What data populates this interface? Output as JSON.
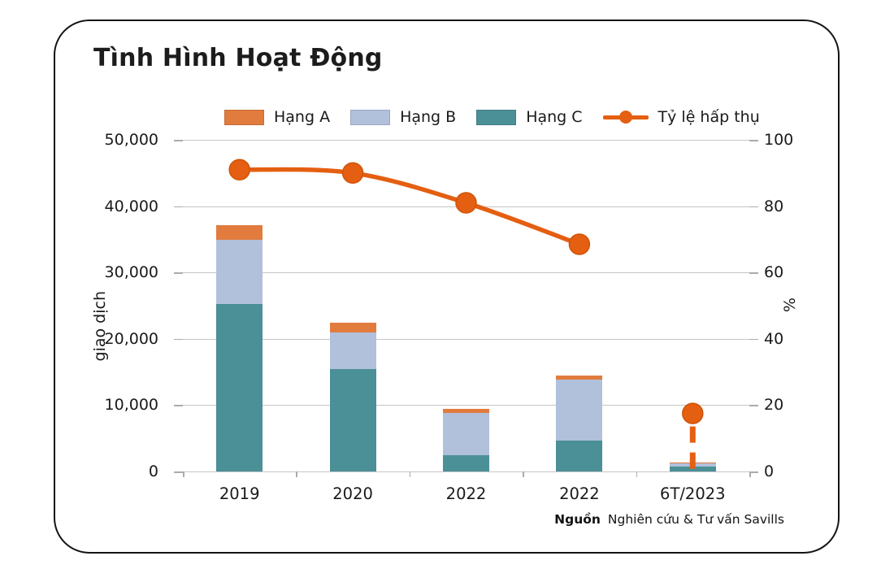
{
  "legend": [
    {
      "label": "Hạng A",
      "type": "swatch",
      "color": "#e17c3e"
    },
    {
      "label": "Hạng B",
      "type": "swatch",
      "color": "#b1c0db"
    },
    {
      "label": "Hạng C",
      "type": "swatch",
      "color": "#4b8f97"
    },
    {
      "label": "Tỷ lệ hấp thụ",
      "type": "line",
      "color": "#e45f11"
    }
  ],
  "chart_data": {
    "type": "combo-stacked-bar-line",
    "title": "Tình Hình Hoạt Động",
    "categories": [
      "2019",
      "2020",
      "2022",
      "2022",
      "6T/2023"
    ],
    "series": [
      {
        "name": "Hạng A",
        "key": "hang-a",
        "type": "bar",
        "color": "#e17c3e",
        "values": [
          2200,
          1400,
          600,
          600,
          200
        ]
      },
      {
        "name": "Hạng B",
        "key": "hang-b",
        "type": "bar",
        "color": "#b1c0db",
        "values": [
          9600,
          5600,
          6400,
          9200,
          500
        ]
      },
      {
        "name": "Hạng C",
        "key": "hang-c",
        "type": "bar",
        "color": "#4b8f97",
        "values": [
          25300,
          15400,
          2400,
          4600,
          700
        ]
      },
      {
        "name": "Tỷ lệ hấp thụ",
        "key": "ty-le-hap-thu",
        "type": "line",
        "axis": "right",
        "color": "#e45f11",
        "values": [
          91,
          90,
          81,
          68.5,
          17.5
        ],
        "solid_points": 4,
        "isolated_point_dashed_drop": true
      }
    ],
    "stack_order_bottom_to_top": [
      "Hạng C",
      "Hạng B",
      "Hạng A"
    ],
    "left_axis": {
      "label": "giao dịch",
      "min": 0,
      "max": 50000,
      "ticks": [
        "50,000",
        "40,000",
        "30,000",
        "20,000",
        "10,000",
        "0"
      ]
    },
    "right_axis": {
      "label": "%",
      "min": 0,
      "max": 100,
      "ticks": [
        "100",
        "80",
        "60",
        "40",
        "20",
        "0"
      ]
    },
    "grid": true,
    "legend_position": "top"
  },
  "source": {
    "prefix": "Nguồn",
    "text": "Nghiên cứu & Tư vấn Savills"
  },
  "colors": {
    "grid": "#c6c6c6",
    "tick": "#ababab",
    "text": "#1a1a1a",
    "background": "#ffffff"
  }
}
